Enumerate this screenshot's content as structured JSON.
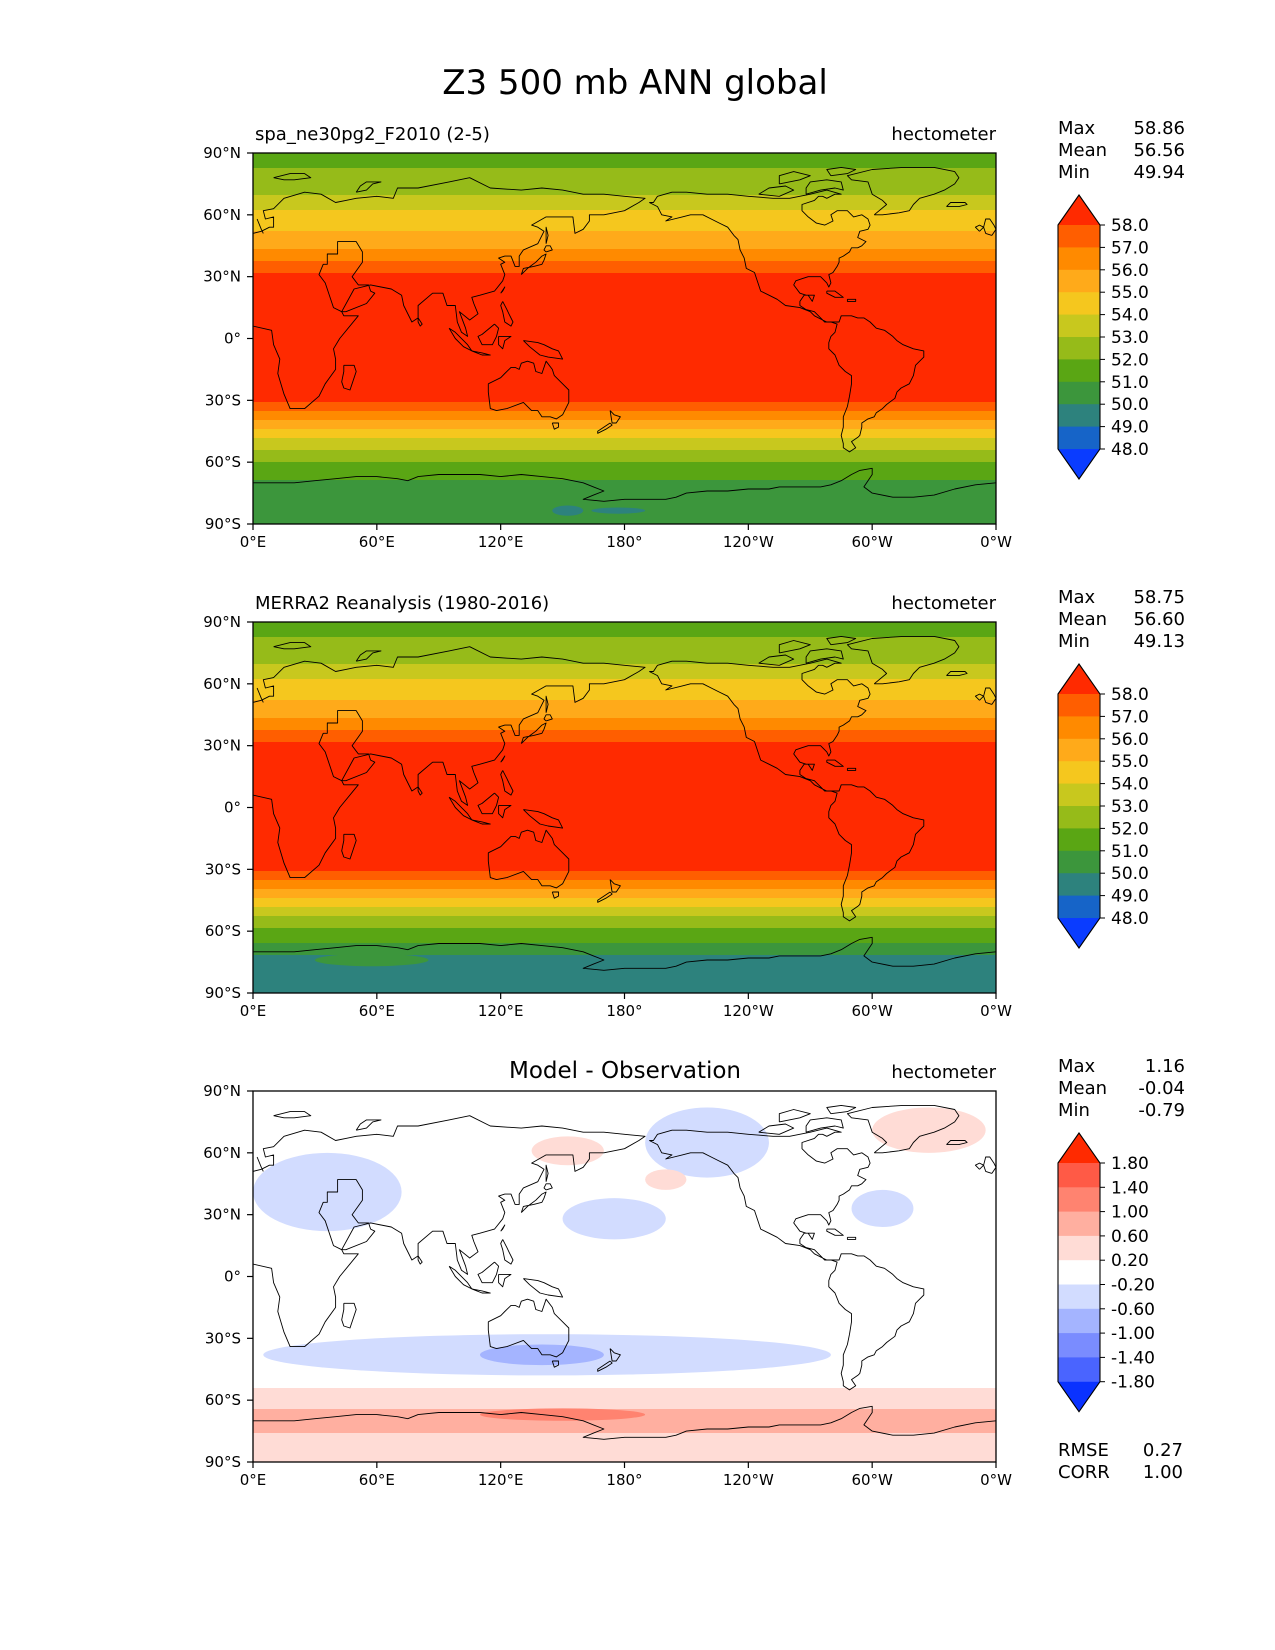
{
  "figure": {
    "title": "Z3 500 mb ANN global"
  },
  "chart_data": [
    {
      "type": "heatmap",
      "panel": "test",
      "title_left": "spa_ne30pg2_F2010 (2-5)",
      "title_center": "",
      "units": "hectometer",
      "stats": [
        {
          "label": "Max",
          "value": "58.86"
        },
        {
          "label": "Mean",
          "value": "56.56"
        },
        {
          "label": "Min",
          "value": "49.94"
        }
      ],
      "metrics": [],
      "x_ticks": [
        "0°E",
        "60°E",
        "120°E",
        "180°",
        "120°W",
        "60°W",
        "0°W"
      ],
      "y_ticks": [
        "90°N",
        "60°N",
        "30°N",
        "0°",
        "30°S",
        "60°S",
        "90°S"
      ],
      "colorbar": {
        "tick_labels": [
          "58.0",
          "57.0",
          "56.0",
          "55.0",
          "54.0",
          "53.0",
          "52.0",
          "51.0",
          "50.0",
          "49.0",
          "48.0"
        ],
        "colors": [
          "#ff2a00",
          "#ff5e00",
          "#ff8a00",
          "#ffaa1a",
          "#f5c71e",
          "#c8c81e",
          "#96bb19",
          "#5aa614",
          "#3c963c",
          "#2d827d",
          "#1664c8",
          "#0a3cff"
        ]
      },
      "zonal_profile": [
        [
          90,
          51.6
        ],
        [
          80,
          52.1
        ],
        [
          72,
          52.7
        ],
        [
          66,
          53.6
        ],
        [
          60,
          54.2
        ],
        [
          54,
          54.8
        ],
        [
          48,
          55.4
        ],
        [
          42,
          56.2
        ],
        [
          36,
          57.2
        ],
        [
          31,
          58.1
        ],
        [
          25,
          58.6
        ],
        [
          0,
          58.8
        ],
        [
          -25,
          58.6
        ],
        [
          -31,
          58.0
        ],
        [
          -36,
          56.8
        ],
        [
          -41,
          55.8
        ],
        [
          -45,
          54.8
        ],
        [
          -49,
          53.9
        ],
        [
          -53,
          53.1
        ],
        [
          -58,
          52.3
        ],
        [
          -64,
          51.6
        ],
        [
          -70,
          50.9
        ],
        [
          -78,
          50.6
        ],
        [
          -90,
          50.7
        ]
      ],
      "features": [
        {
          "lat_range": [
            -86,
            -81
          ],
          "lon_range": [
            145,
            160
          ],
          "level": 49.6
        },
        {
          "lat_range": [
            -85,
            -82
          ],
          "lon_range": [
            164,
            190
          ],
          "level": 49.6
        }
      ]
    },
    {
      "type": "heatmap",
      "panel": "reference",
      "title_left": "MERRA2 Reanalysis (1980-2016)",
      "title_center": "",
      "units": "hectometer",
      "stats": [
        {
          "label": "Max",
          "value": "58.75"
        },
        {
          "label": "Mean",
          "value": "56.60"
        },
        {
          "label": "Min",
          "value": "49.13"
        }
      ],
      "metrics": [],
      "x_ticks": [
        "0°E",
        "60°E",
        "120°E",
        "180°",
        "120°W",
        "60°W",
        "0°W"
      ],
      "y_ticks": [
        "90°N",
        "60°N",
        "30°N",
        "0°",
        "30°S",
        "60°S",
        "90°S"
      ],
      "colorbar": {
        "tick_labels": [
          "58.0",
          "57.0",
          "56.0",
          "55.0",
          "54.0",
          "53.0",
          "52.0",
          "51.0",
          "50.0",
          "49.0",
          "48.0"
        ],
        "colors": [
          "#ff2a00",
          "#ff5e00",
          "#ff8a00",
          "#ffaa1a",
          "#f5c71e",
          "#c8c81e",
          "#96bb19",
          "#5aa614",
          "#3c963c",
          "#2d827d",
          "#1664c8",
          "#0a3cff"
        ]
      },
      "zonal_profile": [
        [
          90,
          51.6
        ],
        [
          80,
          52.1
        ],
        [
          72,
          52.7
        ],
        [
          66,
          53.6
        ],
        [
          60,
          54.2
        ],
        [
          54,
          54.8
        ],
        [
          48,
          55.4
        ],
        [
          42,
          56.2
        ],
        [
          36,
          57.2
        ],
        [
          31,
          58.1
        ],
        [
          25,
          58.6
        ],
        [
          0,
          58.8
        ],
        [
          -25,
          58.6
        ],
        [
          -31,
          58.0
        ],
        [
          -36,
          56.8
        ],
        [
          -41,
          55.8
        ],
        [
          -45,
          54.8
        ],
        [
          -49,
          53.9
        ],
        [
          -52,
          53.1
        ],
        [
          -56,
          52.3
        ],
        [
          -61,
          51.6
        ],
        [
          -66,
          50.9
        ],
        [
          -70,
          50.2
        ],
        [
          -76,
          49.6
        ],
        [
          -90,
          49.5
        ]
      ],
      "features": [
        {
          "lat_range": [
            -77,
            -71
          ],
          "lon_range": [
            30,
            85
          ],
          "level": 50.3
        }
      ]
    },
    {
      "type": "heatmap",
      "panel": "difference",
      "title_left": "",
      "title_center": "Model - Observation",
      "units": "hectometer",
      "stats": [
        {
          "label": "Max",
          "value": "1.16"
        },
        {
          "label": "Mean",
          "value": "-0.04"
        },
        {
          "label": "Min",
          "value": "-0.79"
        }
      ],
      "metrics": [
        {
          "label": "RMSE",
          "value": "0.27"
        },
        {
          "label": "CORR",
          "value": "1.00"
        }
      ],
      "x_ticks": [
        "0°E",
        "60°E",
        "120°E",
        "180°",
        "120°W",
        "60°W",
        "0°W"
      ],
      "y_ticks": [
        "90°N",
        "60°N",
        "30°N",
        "0°",
        "30°S",
        "60°S",
        "90°S"
      ],
      "colorbar": {
        "tick_labels": [
          "1.80",
          "1.40",
          "1.00",
          "0.60",
          "0.20",
          "-0.20",
          "-0.60",
          "-1.00",
          "-1.40",
          "-1.80"
        ],
        "colors": [
          "#ff2a00",
          "#ff5a46",
          "#ff8370",
          "#ffafa0",
          "#ffdcd6",
          "#ffffff",
          "#d2dcff",
          "#a4b4ff",
          "#7a8cff",
          "#4a64ff",
          "#0a32ff"
        ]
      },
      "zonal_profile": [
        [
          90,
          0.0
        ],
        [
          -52,
          0.0
        ],
        [
          -55,
          0.35
        ],
        [
          -62,
          0.45
        ],
        [
          -68,
          0.8
        ],
        [
          -73,
          0.8
        ],
        [
          -78,
          0.5
        ],
        [
          -90,
          0.4
        ]
      ],
      "features": [
        {
          "lat_range": [
            -48,
            -28
          ],
          "lon_range": [
            5,
            280
          ],
          "level": -0.4
        },
        {
          "lat_range": [
            -43,
            -33
          ],
          "lon_range": [
            110,
            170
          ],
          "level": -0.75
        },
        {
          "lat_range": [
            22,
            60
          ],
          "lon_range": [
            0,
            72
          ],
          "level": -0.4
        },
        {
          "lat_range": [
            18,
            38
          ],
          "lon_range": [
            150,
            200
          ],
          "level": -0.4
        },
        {
          "lat_range": [
            48,
            82
          ],
          "lon_range": [
            190,
            250
          ],
          "level": -0.4
        },
        {
          "lat_range": [
            24,
            42
          ],
          "lon_range": [
            290,
            320
          ],
          "level": -0.4
        },
        {
          "lat_range": [
            54,
            68
          ],
          "lon_range": [
            135,
            170
          ],
          "level": 0.4
        },
        {
          "lat_range": [
            42,
            52
          ],
          "lon_range": [
            190,
            210
          ],
          "level": 0.4
        },
        {
          "lat_range": [
            60,
            82
          ],
          "lon_range": [
            300,
            355
          ],
          "level": 0.4
        },
        {
          "lat_range": [
            -70,
            -64
          ],
          "lon_range": [
            110,
            190
          ],
          "level": 1.1
        }
      ]
    }
  ]
}
